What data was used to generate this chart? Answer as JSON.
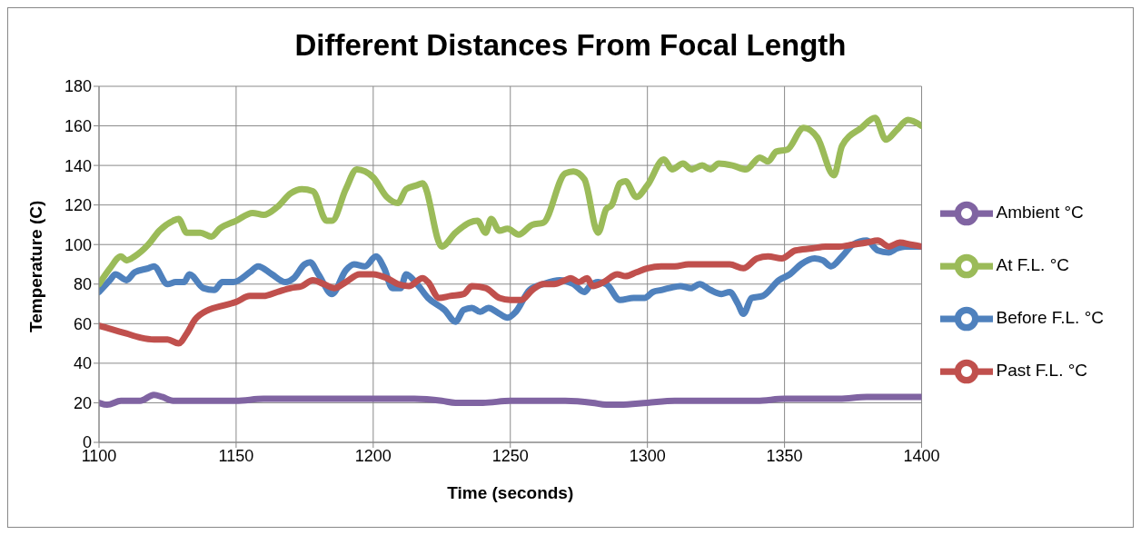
{
  "chart_data": {
    "type": "line",
    "title": "Different Distances From Focal Length",
    "xlabel": "Time (seconds)",
    "ylabel": "Temperature (C)",
    "xlim": [
      1100,
      1400
    ],
    "xticks": [
      1100,
      1150,
      1200,
      1250,
      1300,
      1350,
      1400
    ],
    "ylim": [
      0,
      180
    ],
    "yticks": [
      0,
      20,
      40,
      60,
      80,
      100,
      120,
      140,
      160,
      180
    ],
    "grid": true,
    "legend": "right",
    "marker": "none",
    "line_style": "solid",
    "series": [
      {
        "name": "Before F.L. °C",
        "color": "#4f81bd",
        "x": [
          1100,
          1104,
          1106,
          1110,
          1113,
          1118,
          1120,
          1125,
          1128,
          1131,
          1133,
          1138,
          1142,
          1145,
          1149,
          1155,
          1158,
          1163,
          1168,
          1171,
          1175,
          1177,
          1180,
          1185,
          1190,
          1193,
          1197,
          1201,
          1204,
          1207,
          1210,
          1212,
          1216,
          1220,
          1226,
          1230,
          1233,
          1236,
          1239,
          1242,
          1246,
          1249,
          1252,
          1257,
          1262,
          1268,
          1273,
          1277,
          1279,
          1282,
          1285,
          1290,
          1295,
          1299,
          1302,
          1305,
          1308,
          1312,
          1316,
          1319,
          1323,
          1327,
          1330,
          1333,
          1335,
          1338,
          1342,
          1348,
          1352,
          1356,
          1361,
          1364,
          1367,
          1371,
          1375,
          1380,
          1384,
          1388,
          1391,
          1394,
          1398,
          1400
        ],
        "values": [
          76,
          82,
          85,
          82,
          86,
          88,
          89,
          80,
          81,
          81,
          85,
          78,
          77,
          81,
          81,
          86,
          89,
          85,
          81,
          83,
          90,
          91,
          85,
          75,
          87,
          90,
          89,
          94,
          88,
          78,
          78,
          85,
          80,
          73,
          67,
          61,
          67,
          68,
          66,
          68,
          65,
          63,
          66,
          77,
          80,
          82,
          80,
          76,
          79,
          81,
          80,
          72,
          73,
          73,
          76,
          77,
          78,
          79,
          78,
          80,
          77,
          75,
          76,
          70,
          65,
          73,
          74,
          82,
          85,
          90,
          93,
          92,
          89,
          94,
          100,
          102,
          97,
          96,
          98,
          99,
          99,
          99
        ]
      },
      {
        "name": "Past F.L. °C",
        "color": "#c0504d",
        "x": [
          1100,
          1105,
          1110,
          1115,
          1120,
          1125,
          1129,
          1132,
          1135,
          1140,
          1145,
          1150,
          1155,
          1160,
          1165,
          1170,
          1174,
          1178,
          1182,
          1186,
          1190,
          1195,
          1200,
          1205,
          1209,
          1213,
          1218,
          1220,
          1224,
          1228,
          1233,
          1236,
          1241,
          1246,
          1250,
          1254,
          1258,
          1262,
          1266,
          1270,
          1272,
          1275,
          1278,
          1280,
          1284,
          1289,
          1292,
          1296,
          1300,
          1305,
          1310,
          1315,
          1320,
          1325,
          1330,
          1335,
          1340,
          1344,
          1349,
          1354,
          1360,
          1365,
          1370,
          1375,
          1380,
          1384,
          1388,
          1392,
          1396,
          1400
        ],
        "values": [
          59,
          57,
          55,
          53,
          52,
          52,
          50,
          55,
          62,
          67,
          69,
          71,
          74,
          74,
          76,
          78,
          79,
          82,
          80,
          78,
          81,
          85,
          85,
          83,
          80,
          79,
          83,
          81,
          73,
          74,
          75,
          79,
          78,
          73,
          72,
          72,
          77,
          80,
          80,
          82,
          83,
          81,
          83,
          79,
          81,
          85,
          84,
          86,
          88,
          89,
          89,
          90,
          90,
          90,
          90,
          88,
          93,
          94,
          93,
          97,
          98,
          99,
          99,
          100,
          101,
          102,
          99,
          101,
          100,
          99
        ]
      },
      {
        "name": "At F.L. °C",
        "color": "#9bbb59",
        "x": [
          1100,
          1104,
          1108,
          1110,
          1113,
          1118,
          1122,
          1127,
          1129,
          1132,
          1137,
          1141,
          1144,
          1150,
          1156,
          1160,
          1165,
          1170,
          1174,
          1178,
          1183,
          1185,
          1190,
          1194,
          1197,
          1200,
          1205,
          1209,
          1212,
          1216,
          1218,
          1225,
          1230,
          1235,
          1238,
          1241,
          1243,
          1246,
          1249,
          1253,
          1258,
          1262,
          1270,
          1273,
          1277,
          1282,
          1285,
          1287,
          1290,
          1292,
          1296,
          1300,
          1306,
          1309,
          1313,
          1316,
          1320,
          1323,
          1326,
          1331,
          1336,
          1341,
          1344,
          1347,
          1351,
          1357,
          1362,
          1368,
          1371,
          1378,
          1383,
          1387,
          1391,
          1395,
          1400
        ],
        "values": [
          80,
          88,
          94,
          92,
          94,
          100,
          107,
          112,
          113,
          106,
          106,
          104,
          108,
          112,
          116,
          115,
          119,
          126,
          128,
          127,
          112,
          112,
          128,
          138,
          137,
          134,
          124,
          121,
          128,
          130,
          131,
          99,
          106,
          111,
          112,
          106,
          113,
          107,
          108,
          105,
          110,
          111,
          136,
          137,
          133,
          106,
          118,
          120,
          131,
          132,
          124,
          130,
          143,
          138,
          141,
          138,
          140,
          138,
          141,
          140,
          138,
          144,
          142,
          147,
          148,
          159,
          154,
          135,
          150,
          159,
          164,
          153,
          158,
          163,
          160
        ]
      },
      {
        "name": "Ambient °C",
        "color": "#8064a2",
        "x": [
          1100,
          1103,
          1108,
          1115,
          1120,
          1123,
          1127,
          1140,
          1150,
          1160,
          1175,
          1190,
          1200,
          1215,
          1225,
          1230,
          1240,
          1250,
          1260,
          1270,
          1280,
          1285,
          1290,
          1300,
          1310,
          1320,
          1330,
          1340,
          1350,
          1360,
          1370,
          1380,
          1390,
          1400
        ],
        "values": [
          20,
          19,
          21,
          21,
          24,
          23,
          21,
          21,
          21,
          22,
          22,
          22,
          22,
          22,
          21,
          20,
          20,
          21,
          21,
          21,
          20,
          19,
          19,
          20,
          21,
          21,
          21,
          21,
          22,
          22,
          22,
          23,
          23,
          23
        ]
      }
    ]
  }
}
